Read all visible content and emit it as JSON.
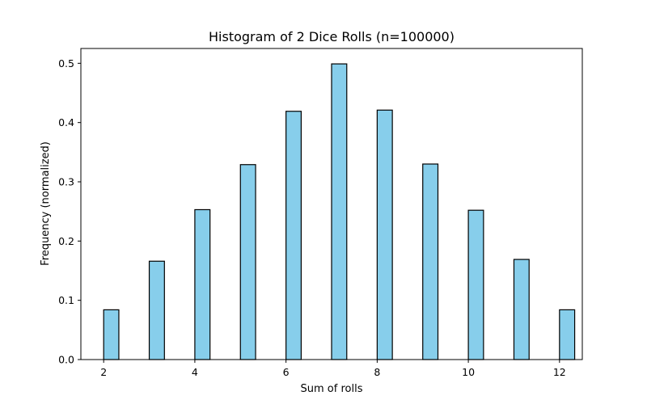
{
  "chart_data": {
    "type": "bar",
    "title": "Histogram of 2 Dice Rolls (n=100000)",
    "xlabel": "Sum of rolls",
    "ylabel": "Frequency (normalized)",
    "xlim": [
      1.5,
      12.5
    ],
    "ylim": [
      0,
      0.525
    ],
    "xticks": [
      2,
      4,
      6,
      8,
      10,
      12
    ],
    "yticks": [
      0.0,
      0.1,
      0.2,
      0.3,
      0.4,
      0.5
    ],
    "bin_width": 0.333,
    "bars": [
      {
        "x": 2,
        "value": 0.084
      },
      {
        "x": 3,
        "value": 0.166
      },
      {
        "x": 4,
        "value": 0.253
      },
      {
        "x": 5,
        "value": 0.329
      },
      {
        "x": 6,
        "value": 0.419
      },
      {
        "x": 7,
        "value": 0.499
      },
      {
        "x": 8,
        "value": 0.421
      },
      {
        "x": 9,
        "value": 0.33
      },
      {
        "x": 10,
        "value": 0.252
      },
      {
        "x": 11,
        "value": 0.169
      },
      {
        "x": 12,
        "value": 0.084
      }
    ],
    "bar_color": "#87ceeb",
    "edge_color": "#000000",
    "grid": false,
    "legend": "none"
  }
}
